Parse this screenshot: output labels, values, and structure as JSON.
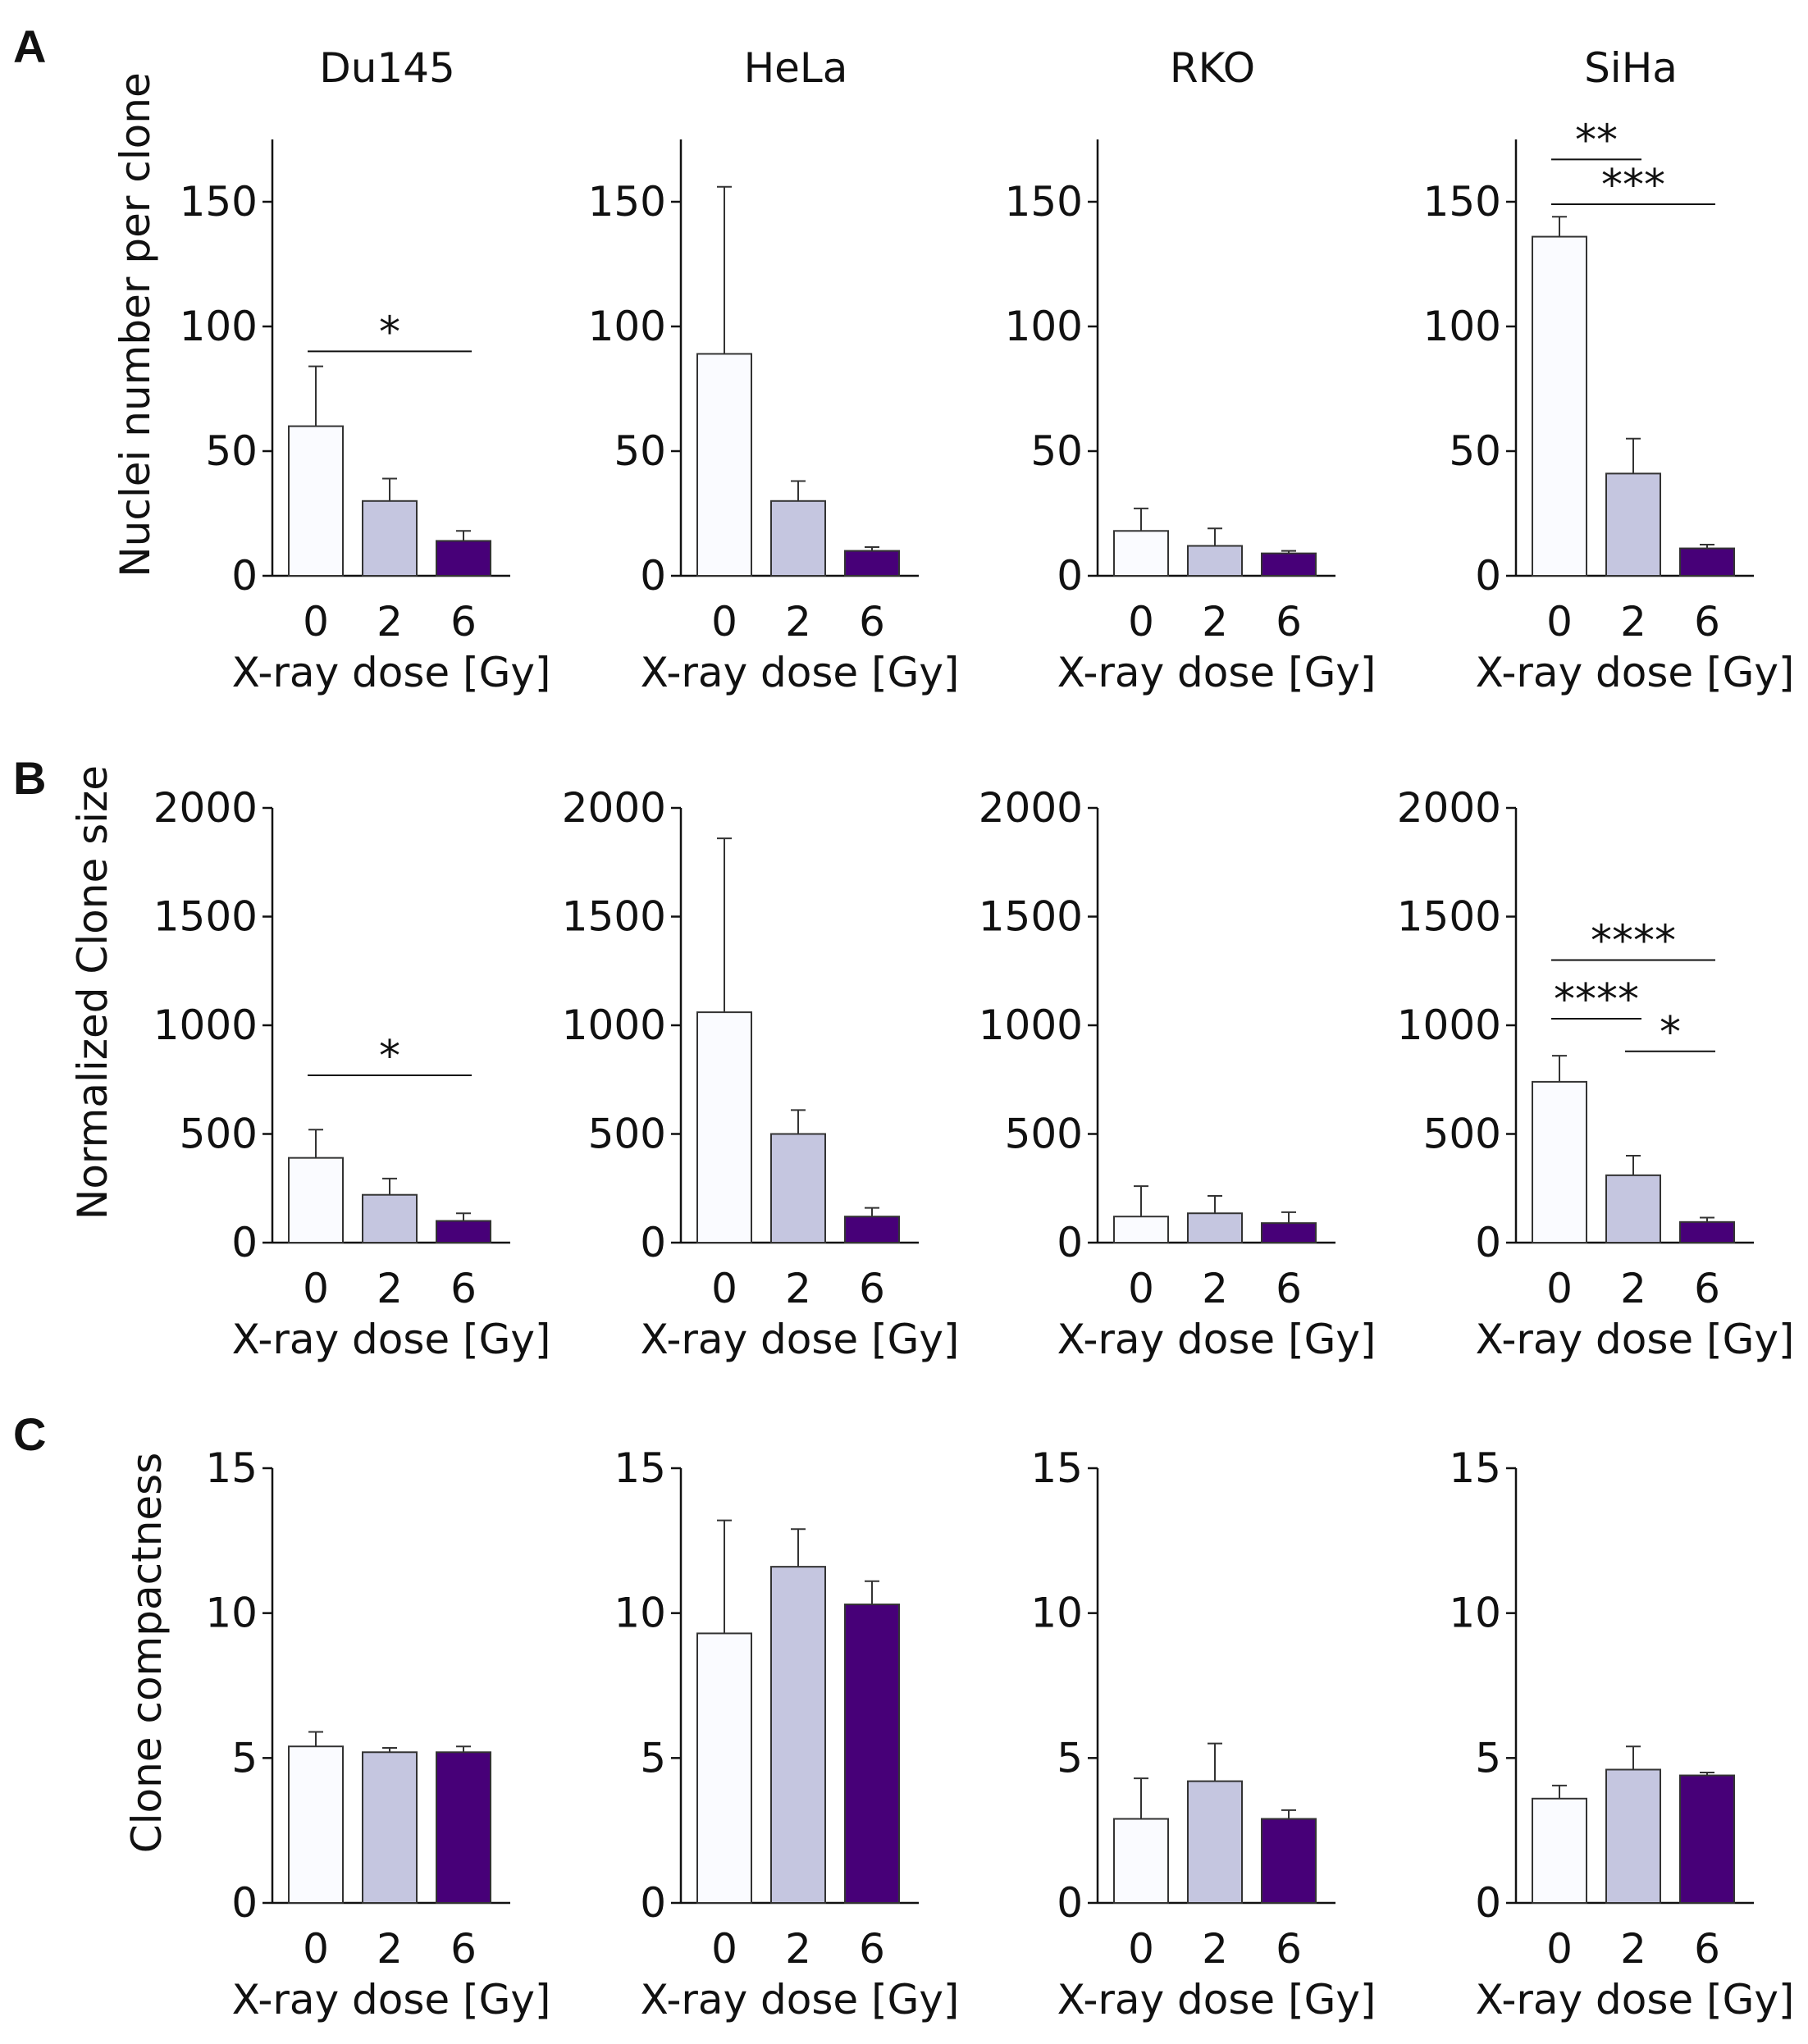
{
  "figure": {
    "panels": [
      {
        "letter": "A",
        "ylabel": "Nuclei number per clone"
      },
      {
        "letter": "B",
        "ylabel": "Normalized Clone size"
      },
      {
        "letter": "C",
        "ylabel": "Clone compactness"
      }
    ],
    "colors": {
      "dose_0": "#fafbff",
      "dose_2": "#c5c6e0",
      "dose_6": "#470078",
      "axis": "#111111",
      "bar_edge": "#333333"
    }
  },
  "chart_data": [
    {
      "type": "bar",
      "panel": "A",
      "title": "Du145",
      "xlabel": "X-ray dose [Gy]",
      "ylabel": "Nuclei number per clone",
      "categories": [
        "0",
        "2",
        "6"
      ],
      "values": [
        60,
        30,
        14
      ],
      "errors": [
        24,
        9,
        4
      ],
      "ylim": [
        0,
        175
      ],
      "yticks": [
        0,
        50,
        100,
        150
      ],
      "significance": [
        {
          "from": 0,
          "to": 2,
          "label": "*"
        }
      ]
    },
    {
      "type": "bar",
      "panel": "A",
      "title": "HeLa",
      "xlabel": "X-ray dose [Gy]",
      "ylabel": "",
      "categories": [
        "0",
        "2",
        "6"
      ],
      "values": [
        89,
        30,
        10
      ],
      "errors": [
        67,
        8,
        1.5
      ],
      "ylim": [
        0,
        175
      ],
      "yticks": [
        0,
        50,
        100,
        150
      ],
      "significance": []
    },
    {
      "type": "bar",
      "panel": "A",
      "title": "RKO",
      "xlabel": "X-ray dose [Gy]",
      "ylabel": "",
      "categories": [
        "0",
        "2",
        "6"
      ],
      "values": [
        18,
        12,
        9
      ],
      "errors": [
        9,
        7,
        1
      ],
      "ylim": [
        0,
        175
      ],
      "yticks": [
        0,
        50,
        100,
        150
      ],
      "significance": []
    },
    {
      "type": "bar",
      "panel": "A",
      "title": "SiHa",
      "xlabel": "X-ray dose [Gy]",
      "ylabel": "",
      "categories": [
        "0",
        "2",
        "6"
      ],
      "values": [
        136,
        41,
        11
      ],
      "errors": [
        8,
        14,
        1.5
      ],
      "ylim": [
        0,
        175
      ],
      "yticks": [
        0,
        50,
        100,
        150
      ],
      "significance": [
        {
          "from": 0,
          "to": 1,
          "label": "**"
        },
        {
          "from": 0,
          "to": 2,
          "label": "***"
        }
      ]
    },
    {
      "type": "bar",
      "panel": "B",
      "title": "",
      "xlabel": "X-ray dose [Gy]",
      "ylabel": "Normalized Clone size",
      "categories": [
        "0",
        "2",
        "6"
      ],
      "values": [
        390,
        220,
        100
      ],
      "errors": [
        130,
        75,
        35
      ],
      "ylim": [
        0,
        2000
      ],
      "yticks": [
        0,
        500,
        1000,
        1500,
        2000
      ],
      "significance": [
        {
          "from": 0,
          "to": 2,
          "label": "*"
        }
      ]
    },
    {
      "type": "bar",
      "panel": "B",
      "title": "",
      "xlabel": "X-ray dose [Gy]",
      "ylabel": "",
      "categories": [
        "0",
        "2",
        "6"
      ],
      "values": [
        1060,
        500,
        120
      ],
      "errors": [
        800,
        110,
        40
      ],
      "ylim": [
        0,
        2000
      ],
      "yticks": [
        0,
        500,
        1000,
        1500,
        2000
      ],
      "significance": []
    },
    {
      "type": "bar",
      "panel": "B",
      "title": "",
      "xlabel": "X-ray dose [Gy]",
      "ylabel": "",
      "categories": [
        "0",
        "2",
        "6"
      ],
      "values": [
        120,
        135,
        90
      ],
      "errors": [
        140,
        80,
        50
      ],
      "ylim": [
        0,
        2000
      ],
      "yticks": [
        0,
        500,
        1000,
        1500,
        2000
      ],
      "significance": []
    },
    {
      "type": "bar",
      "panel": "B",
      "title": "",
      "xlabel": "X-ray dose [Gy]",
      "ylabel": "",
      "categories": [
        "0",
        "2",
        "6"
      ],
      "values": [
        740,
        310,
        95
      ],
      "errors": [
        120,
        90,
        20
      ],
      "ylim": [
        0,
        2000
      ],
      "yticks": [
        0,
        500,
        1000,
        1500,
        2000
      ],
      "significance": [
        {
          "from": 1,
          "to": 2,
          "label": "*"
        },
        {
          "from": 0,
          "to": 1,
          "label": "****"
        },
        {
          "from": 0,
          "to": 2,
          "label": "****"
        }
      ]
    },
    {
      "type": "bar",
      "panel": "C",
      "title": "",
      "xlabel": "X-ray dose [Gy]",
      "ylabel": "Clone compactness",
      "categories": [
        "0",
        "2",
        "6"
      ],
      "values": [
        5.4,
        5.2,
        5.2
      ],
      "errors": [
        0.5,
        0.15,
        0.2
      ],
      "ylim": [
        0,
        15
      ],
      "yticks": [
        0,
        5,
        10,
        15
      ],
      "significance": []
    },
    {
      "type": "bar",
      "panel": "C",
      "title": "",
      "xlabel": "X-ray dose [Gy]",
      "ylabel": "",
      "categories": [
        "0",
        "2",
        "6"
      ],
      "values": [
        9.3,
        11.6,
        10.3
      ],
      "errors": [
        3.9,
        1.3,
        0.8
      ],
      "ylim": [
        0,
        15
      ],
      "yticks": [
        0,
        5,
        10,
        15
      ],
      "significance": []
    },
    {
      "type": "bar",
      "panel": "C",
      "title": "",
      "xlabel": "X-ray dose [Gy]",
      "ylabel": "",
      "categories": [
        "0",
        "2",
        "6"
      ],
      "values": [
        2.9,
        4.2,
        2.9
      ],
      "errors": [
        1.4,
        1.3,
        0.3
      ],
      "ylim": [
        0,
        15
      ],
      "yticks": [
        0,
        5,
        10,
        15
      ],
      "significance": []
    },
    {
      "type": "bar",
      "panel": "C",
      "title": "",
      "xlabel": "X-ray dose [Gy]",
      "ylabel": "",
      "categories": [
        "0",
        "2",
        "6"
      ],
      "values": [
        3.6,
        4.6,
        4.4
      ],
      "errors": [
        0.45,
        0.8,
        0.1
      ],
      "ylim": [
        0,
        15
      ],
      "yticks": [
        0,
        5,
        10,
        15
      ],
      "significance": []
    }
  ]
}
